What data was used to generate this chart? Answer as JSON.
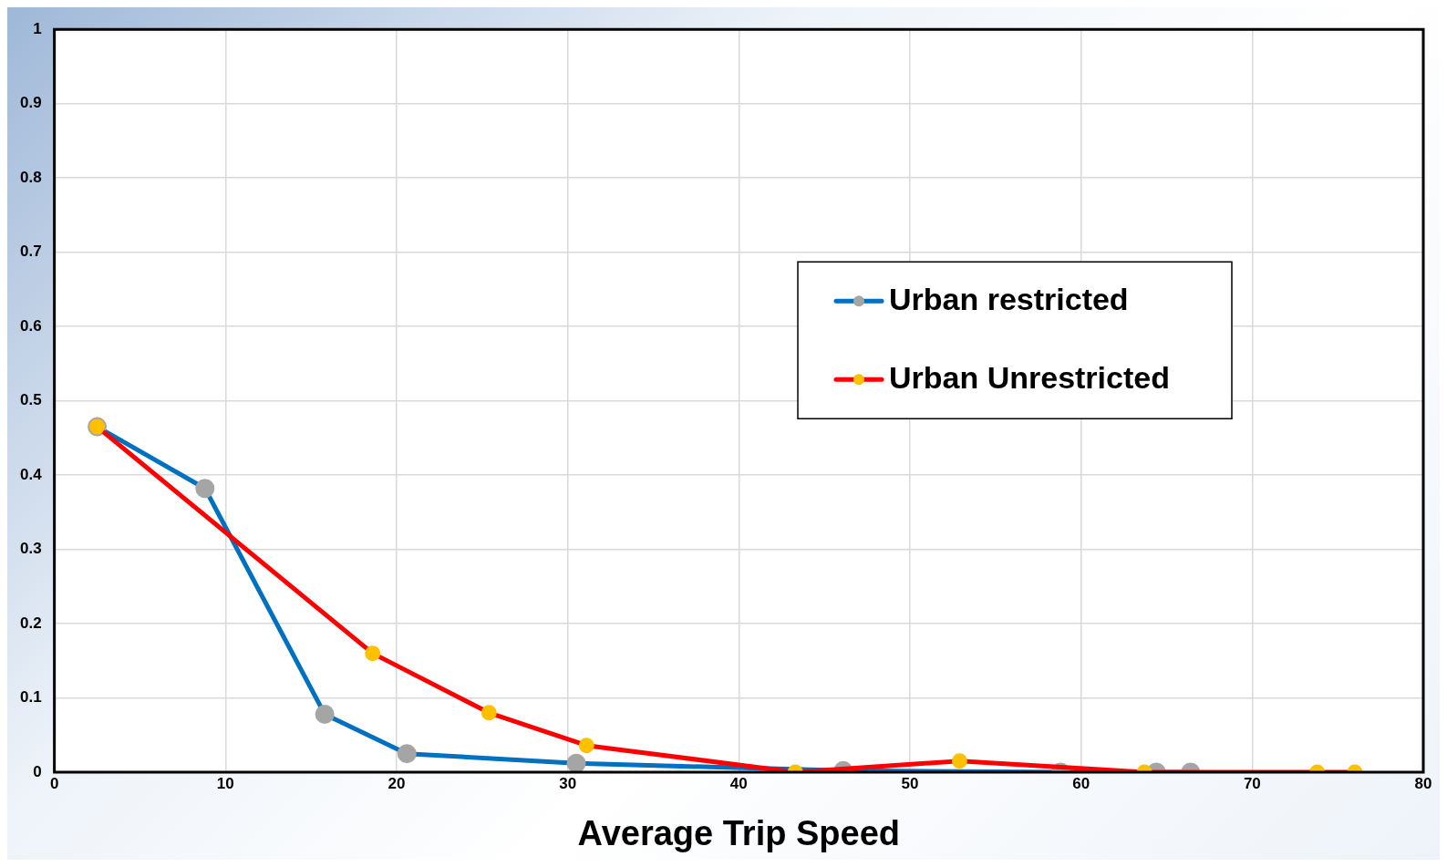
{
  "chart_data": {
    "type": "line",
    "xlabel": "Average Trip Speed",
    "xlim": [
      0,
      80
    ],
    "xticks": [
      0,
      10,
      20,
      30,
      40,
      50,
      60,
      70,
      80
    ],
    "ylim": [
      0,
      1
    ],
    "yticks": [
      0,
      0.1,
      0.2,
      0.3,
      0.4,
      0.5,
      0.6,
      0.7,
      0.8,
      0.9,
      1
    ],
    "grid": true,
    "legend": "right",
    "marker": "circle",
    "line_style": "solid",
    "series": [
      {
        "name": "Urban restricted",
        "color": "#0070c0",
        "x": [
          2.5,
          8.8,
          15.8,
          20.6,
          30.5,
          46.1,
          58.8,
          64.4,
          66.4
        ],
        "values": [
          0.465,
          0.382,
          0.078,
          0.025,
          0.012,
          0.002,
          0,
          0,
          0
        ]
      },
      {
        "name": "Urban Unrestricted",
        "color": "#ff0000",
        "x": [
          2.5,
          18.6,
          25.4,
          31.1,
          43.3,
          52.9,
          63.7,
          73.8,
          76.0
        ],
        "values": [
          0.465,
          0.16,
          0.08,
          0.036,
          0,
          0.015,
          0,
          0,
          0
        ]
      }
    ]
  }
}
